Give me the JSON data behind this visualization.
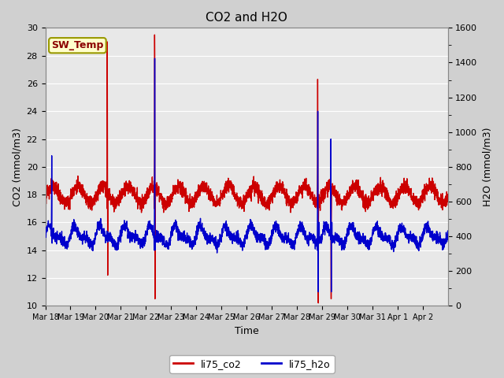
{
  "title": "CO2 and H2O",
  "xlabel": "Time",
  "ylabel_left": "CO2 (mmol/m3)",
  "ylabel_right": "H2O (mmol/m3)",
  "ylim_left": [
    10,
    30
  ],
  "ylim_right": [
    0,
    1600
  ],
  "yticks_left": [
    10,
    12,
    14,
    16,
    18,
    20,
    22,
    24,
    26,
    28,
    30
  ],
  "yticks_right": [
    0,
    200,
    400,
    600,
    800,
    1000,
    1200,
    1400,
    1600
  ],
  "x_tick_labels": [
    "Mar 18",
    "Mar 19",
    "Mar 20",
    "Mar 21",
    "Mar 22",
    "Mar 23",
    "Mar 24",
    "Mar 25",
    "Mar 26",
    "Mar 27",
    "Mar 28",
    "Mar 29",
    "Mar 30",
    "Mar 31",
    "Apr 1",
    "Apr 2"
  ],
  "co2_color": "#cc0000",
  "h2o_color": "#0000cc",
  "fig_bg_color": "#d0d0d0",
  "plot_bg_color": "#e8e8e8",
  "annotation_text": "SW_Temp",
  "annotation_color": "#8b0000",
  "annotation_bg": "#ffffcc",
  "annotation_border": "#999900",
  "legend_co2": "li75_co2",
  "legend_h2o": "li75_h2o",
  "linewidth": 1.0,
  "grid_color": "#ffffff",
  "grid_linewidth": 0.8
}
